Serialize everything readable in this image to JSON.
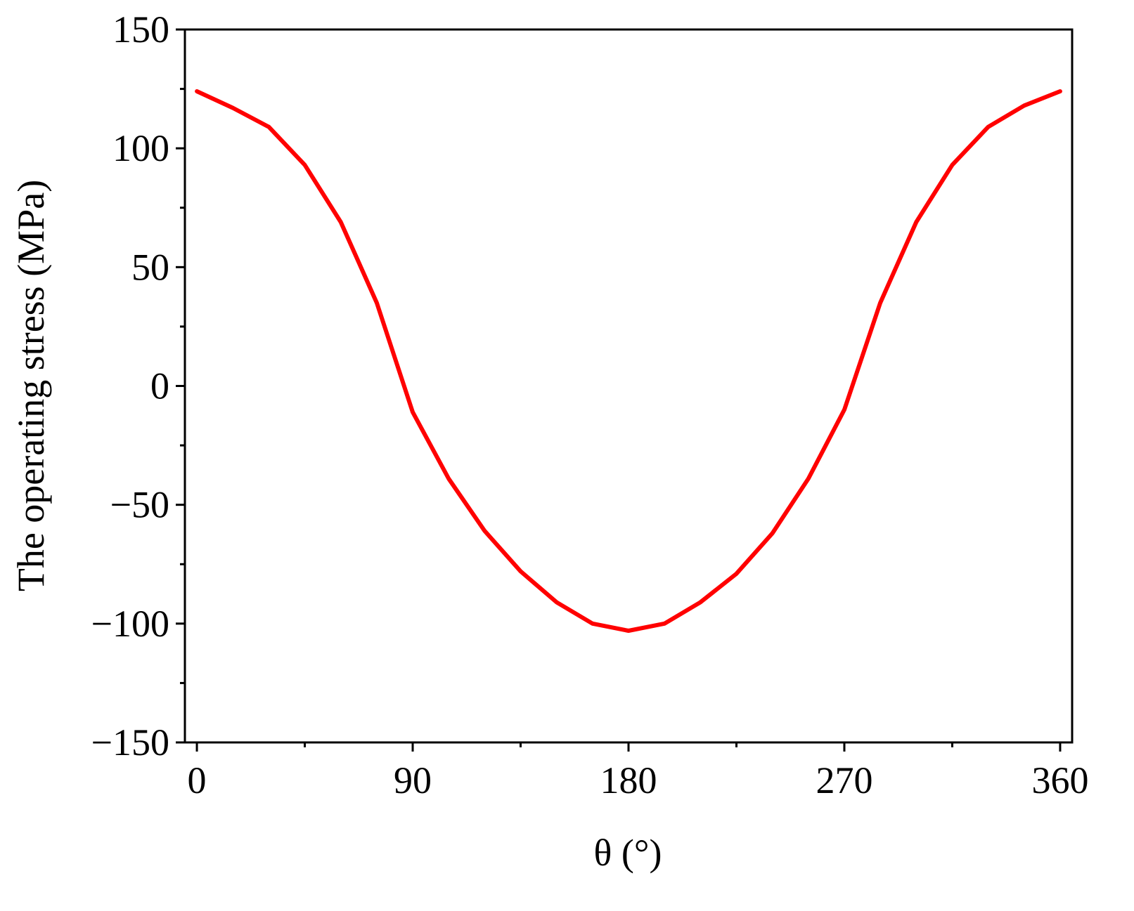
{
  "chart_data": {
    "type": "line",
    "x_label": "θ (°)",
    "y_label": "The operating stress (MPa)",
    "x": [
      0,
      15,
      30,
      45,
      60,
      75,
      90,
      105,
      120,
      135,
      150,
      165,
      180,
      195,
      210,
      225,
      240,
      255,
      270,
      285,
      300,
      315,
      330,
      345,
      360
    ],
    "series": [
      {
        "color": "#ff0000",
        "values": [
          124,
          117,
          109,
          93,
          69,
          35,
          -11,
          -39,
          -61,
          -78,
          -91,
          -100,
          -103,
          -100,
          -91,
          -79,
          -62,
          -39,
          -10,
          35,
          69,
          93,
          109,
          118,
          124
        ]
      }
    ],
    "xlim": [
      -5,
      365
    ],
    "xticks": [
      0,
      90,
      180,
      270,
      360
    ],
    "ylim": [
      -150,
      150
    ],
    "yticks": [
      {
        "value": -150,
        "label": "−150"
      },
      {
        "value": -100,
        "label": "−100"
      },
      {
        "value": -50,
        "label": "−50"
      },
      0,
      50,
      100,
      150
    ]
  }
}
